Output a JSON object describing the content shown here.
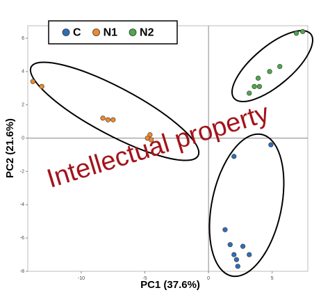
{
  "chart_data": {
    "type": "scatter",
    "xlabel": "PC1 (37.6%)",
    "ylabel": "PC2 (21.6%)",
    "watermark": "Intellectual property",
    "xlim": [
      -14.2,
      7.8
    ],
    "ylim": [
      -8,
      6.75
    ],
    "xticks": [
      -10,
      -5,
      0,
      5
    ],
    "yticks": [
      6,
      4,
      2,
      0,
      -2,
      -4,
      -6,
      -8
    ],
    "legend": "top-left",
    "series": [
      {
        "name": "C",
        "color": "#2f6eb5",
        "x": [
          4.9,
          2.0,
          1.3,
          1.7,
          2.7,
          2.0,
          3.2,
          2.2,
          2.3
        ],
        "values": [
          -0.4,
          -1.1,
          -5.5,
          -6.4,
          -6.5,
          -7.0,
          -7.0,
          -7.3,
          -7.7
        ]
      },
      {
        "name": "N1",
        "color": "#ee8a2c",
        "x": [
          -13.8,
          -13.1,
          -8.3,
          -7.9,
          -7.5,
          -4.6,
          -4.8,
          -4.5
        ],
        "values": [
          3.4,
          3.1,
          1.2,
          1.1,
          1.1,
          0.2,
          0,
          -0.1
        ]
      },
      {
        "name": "N2",
        "color": "#4fa84a",
        "x": [
          6.9,
          7.4,
          5.6,
          4.8,
          3.9,
          3.6,
          4.0,
          3.2
        ],
        "values": [
          6.3,
          6.4,
          4.3,
          4.0,
          3.6,
          3.1,
          3.1,
          2.7
        ]
      }
    ]
  }
}
